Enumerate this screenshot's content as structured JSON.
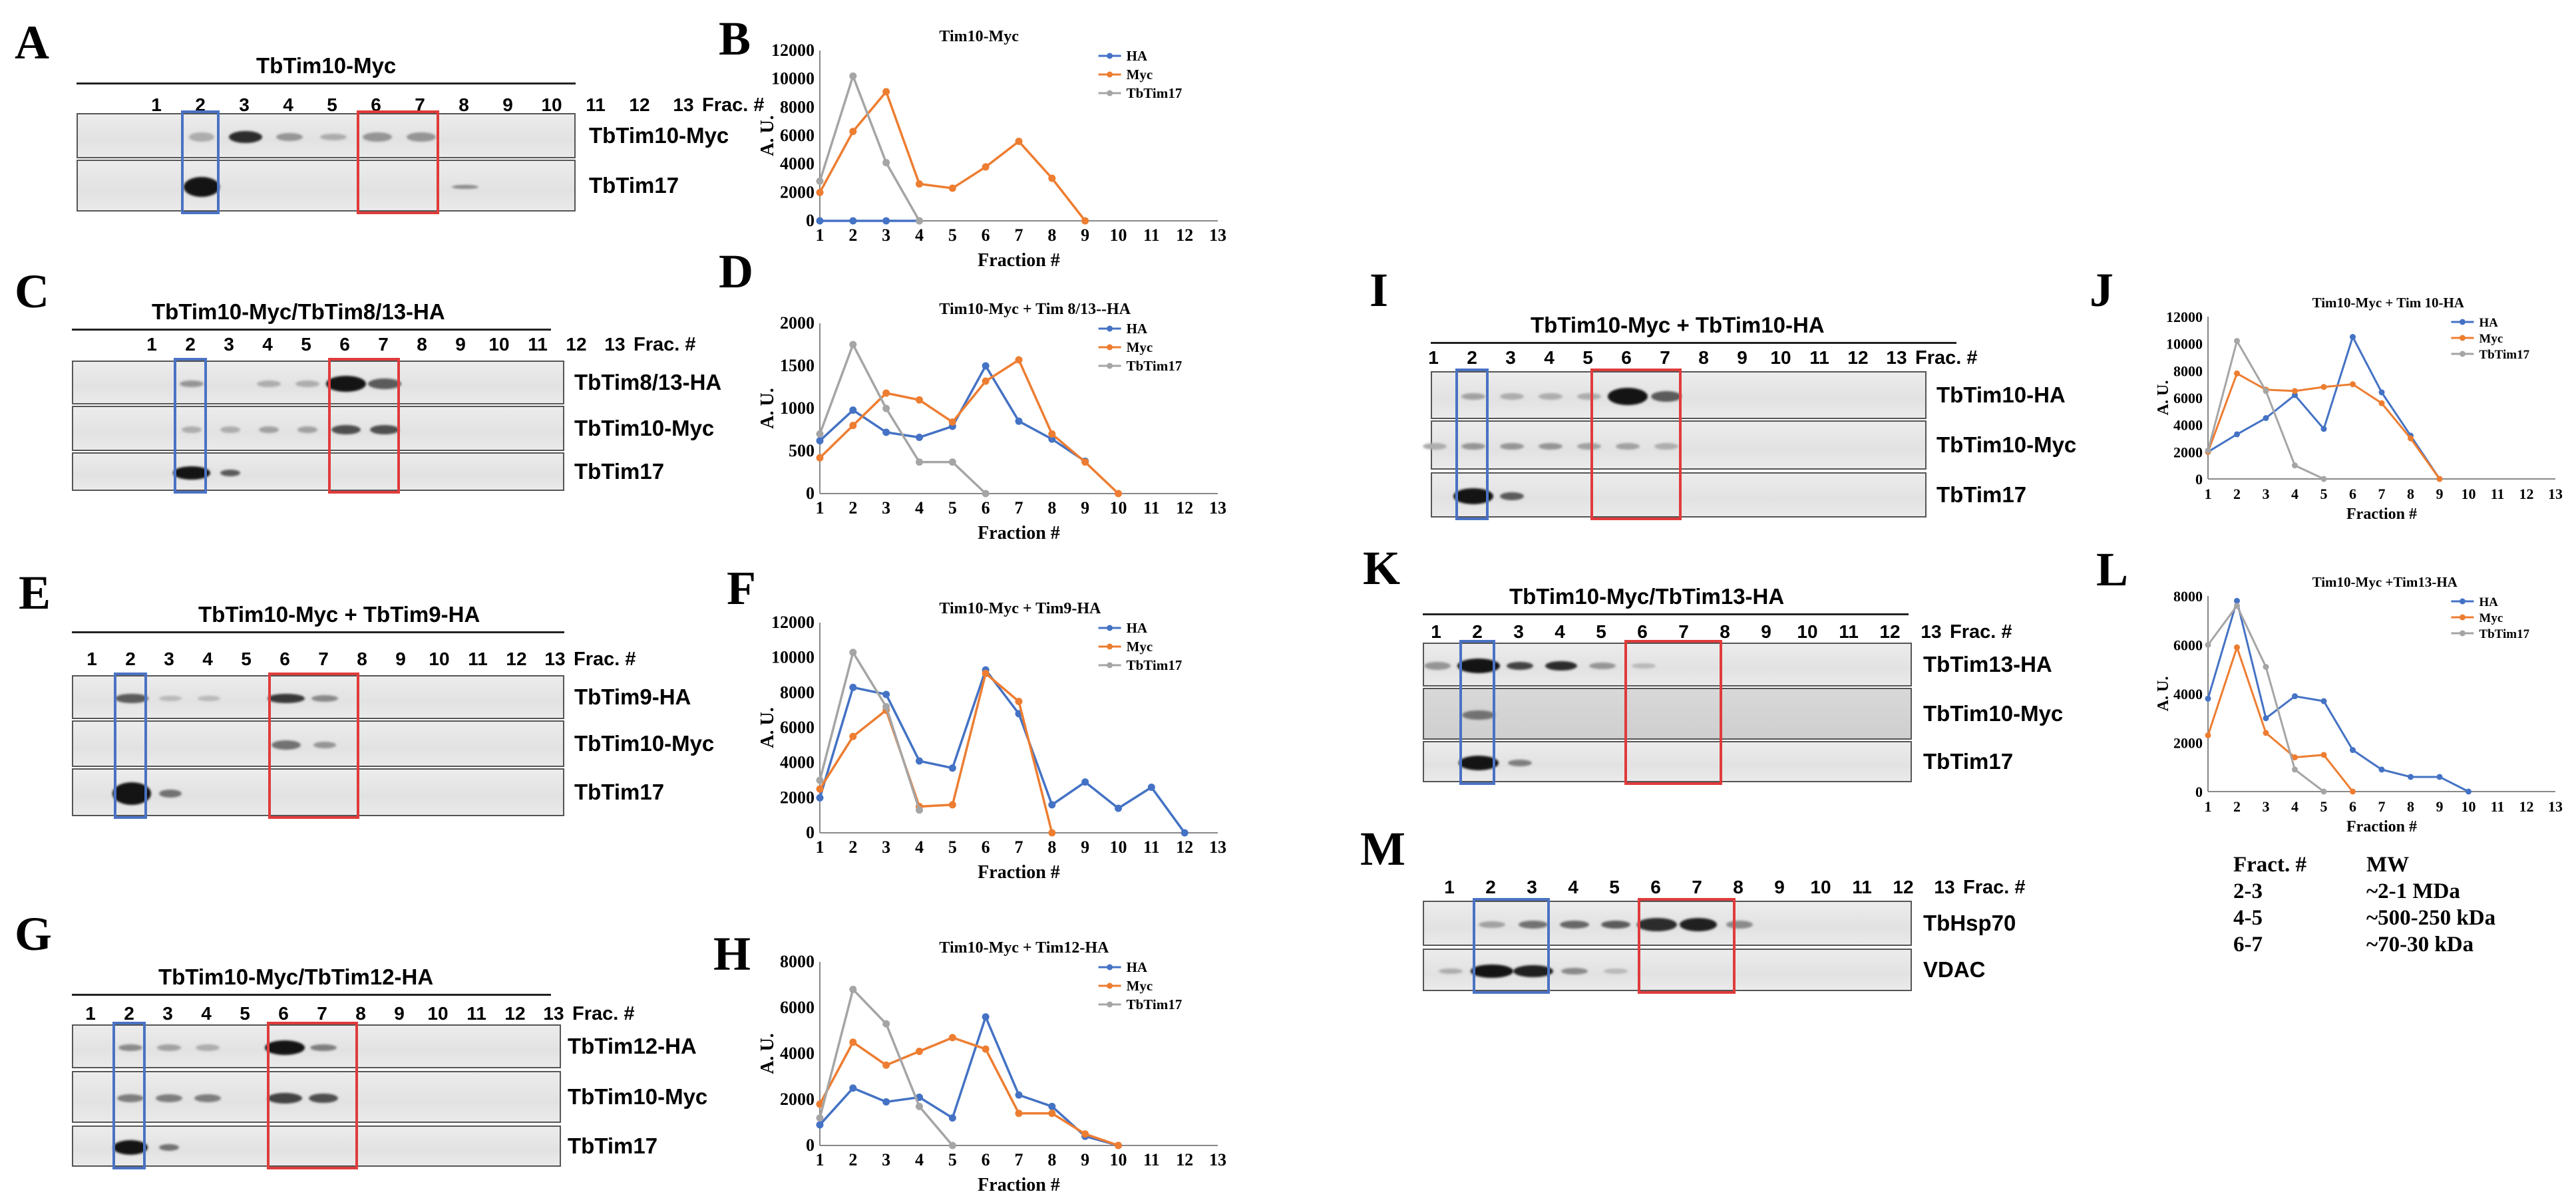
{
  "panel_letters": {
    "a": "A",
    "b": "B",
    "c": "C",
    "d": "D",
    "e": "E",
    "f": "F",
    "g": "G",
    "h": "H",
    "i": "I",
    "j": "J",
    "k": "K",
    "l": "L",
    "m": "M"
  },
  "blots": {
    "A": {
      "title": "TbTim10-Myc",
      "frac_label": "Frac. #",
      "rows": [
        "TbTim10-Myc",
        "TbTim17"
      ]
    },
    "C": {
      "title": "TbTim10-Myc/TbTim8/13-HA",
      "frac_label": "Frac. #",
      "rows": [
        "TbTim8/13-HA",
        "TbTim10-Myc",
        "TbTim17"
      ]
    },
    "E": {
      "title": "TbTim10-Myc + TbTim9-HA",
      "frac_label": "Frac. #",
      "rows": [
        "TbTim9-HA",
        "TbTim10-Myc",
        "TbTim17"
      ]
    },
    "G": {
      "title": "TbTim10-Myc/TbTim12-HA",
      "frac_label": "Frac. #",
      "rows": [
        "TbTim12-HA",
        "TbTim10-Myc",
        "TbTim17"
      ]
    },
    "I": {
      "title": "TbTim10-Myc + TbTim10-HA",
      "frac_label": "Frac. #",
      "rows": [
        "TbTim10-HA",
        "TbTim10-Myc",
        "TbTim17"
      ]
    },
    "K": {
      "title": "TbTim10-Myc/TbTim13-HA",
      "frac_label": "Frac. #",
      "rows": [
        "TbTim13-HA",
        "TbTim10-Myc",
        "TbTim17"
      ]
    },
    "M": {
      "title": "",
      "frac_label": "Frac. #",
      "rows": [
        "TbHsp70",
        "VDAC"
      ]
    }
  },
  "lanes": [
    "1",
    "2",
    "3",
    "4",
    "5",
    "6",
    "7",
    "8",
    "9",
    "10",
    "11",
    "12",
    "13"
  ],
  "mw_table": {
    "header": [
      "Fract. #",
      "MW"
    ],
    "rows": [
      [
        "2-3",
        "~2-1 MDa"
      ],
      [
        "4-5",
        "~500-250 kDa"
      ],
      [
        "6-7",
        "~70-30 kDa"
      ]
    ]
  },
  "colors": {
    "HA": "#4472c4",
    "Myc": "#ed7d31",
    "TbTim17": "#a5a5a5",
    "blue_box": "#4a72c4",
    "red_box": "#e03b3b"
  },
  "chart_data": [
    {
      "panel": "B",
      "type": "line",
      "title": "Tim10-Myc",
      "xlabel": "Fraction #",
      "ylabel": "A. U.",
      "x": [
        1,
        2,
        3,
        4,
        5,
        6,
        7,
        8,
        9,
        10,
        11,
        12,
        13
      ],
      "ylim": [
        0,
        12000
      ],
      "yticks": [
        0,
        2000,
        4000,
        6000,
        8000,
        10000,
        12000
      ],
      "legend": "top-right",
      "series": [
        {
          "name": "HA",
          "values": [
            0,
            0,
            0,
            0,
            null,
            null,
            null,
            null,
            null,
            null,
            null,
            null,
            null
          ]
        },
        {
          "name": "Myc",
          "values": [
            2000,
            6300,
            9100,
            2600,
            2300,
            3800,
            5600,
            3000,
            0,
            null,
            null,
            null,
            null
          ]
        },
        {
          "name": "TbTim17",
          "values": [
            2800,
            10200,
            4100,
            0,
            null,
            null,
            null,
            null,
            null,
            null,
            null,
            null,
            null
          ]
        }
      ]
    },
    {
      "panel": "D",
      "type": "line",
      "title": "Tim10-Myc + Tim 8/13--HA",
      "xlabel": "Fraction #",
      "ylabel": "A. U.",
      "x": [
        1,
        2,
        3,
        4,
        5,
        6,
        7,
        8,
        9,
        10,
        11,
        12,
        13
      ],
      "ylim": [
        0,
        2000
      ],
      "yticks": [
        0,
        500,
        1000,
        1500,
        2000
      ],
      "legend": "top-right",
      "series": [
        {
          "name": "HA",
          "values": [
            620,
            980,
            720,
            660,
            790,
            1500,
            850,
            640,
            380,
            null,
            null,
            null,
            null
          ]
        },
        {
          "name": "Myc",
          "values": [
            420,
            800,
            1180,
            1100,
            840,
            1320,
            1570,
            700,
            370,
            0,
            null,
            null,
            null
          ]
        },
        {
          "name": "TbTim17",
          "values": [
            700,
            1750,
            1000,
            370,
            370,
            0,
            null,
            null,
            null,
            null,
            null,
            null,
            null
          ]
        }
      ]
    },
    {
      "panel": "F",
      "type": "line",
      "title": "Tim10-Myc + Tim9-HA",
      "xlabel": "Fraction #",
      "ylabel": "A. U.",
      "x": [
        1,
        2,
        3,
        4,
        5,
        6,
        7,
        8,
        9,
        10,
        11,
        12,
        13
      ],
      "ylim": [
        0,
        12000
      ],
      "yticks": [
        0,
        2000,
        4000,
        6000,
        8000,
        10000,
        12000
      ],
      "legend": "top-right",
      "series": [
        {
          "name": "HA",
          "values": [
            2000,
            8300,
            7900,
            4100,
            3700,
            9300,
            6800,
            1600,
            2900,
            1400,
            2600,
            0,
            null
          ]
        },
        {
          "name": "Myc",
          "values": [
            2500,
            5500,
            7000,
            1500,
            1600,
            9100,
            7500,
            0,
            null,
            null,
            null,
            null,
            null
          ]
        },
        {
          "name": "TbTim17",
          "values": [
            3000,
            10300,
            7200,
            1300,
            null,
            null,
            null,
            null,
            null,
            null,
            null,
            null,
            null
          ]
        }
      ]
    },
    {
      "panel": "H",
      "type": "line",
      "title": "Tim10-Myc + Tim12-HA",
      "xlabel": "Fraction #",
      "ylabel": "A. U.",
      "x": [
        1,
        2,
        3,
        4,
        5,
        6,
        7,
        8,
        9,
        10,
        11,
        12,
        13
      ],
      "ylim": [
        0,
        8000
      ],
      "yticks": [
        0,
        2000,
        4000,
        6000,
        8000
      ],
      "legend": "top-right",
      "series": [
        {
          "name": "HA",
          "values": [
            900,
            2500,
            1900,
            2100,
            1200,
            5600,
            2200,
            1700,
            400,
            0,
            null,
            null,
            null
          ]
        },
        {
          "name": "Myc",
          "values": [
            1800,
            4500,
            3500,
            4100,
            4700,
            4200,
            1400,
            1400,
            500,
            0,
            null,
            null,
            null
          ]
        },
        {
          "name": "TbTim17",
          "values": [
            1200,
            6800,
            5300,
            1700,
            0,
            null,
            null,
            null,
            null,
            null,
            null,
            null,
            null
          ]
        }
      ]
    },
    {
      "panel": "J",
      "type": "line",
      "title": "Tim10-Myc + Tim 10-HA",
      "xlabel": "Fraction #",
      "ylabel": "A. U.",
      "x": [
        1,
        2,
        3,
        4,
        5,
        6,
        7,
        8,
        9,
        10,
        11,
        12,
        13
      ],
      "ylim": [
        0,
        12000
      ],
      "yticks": [
        0,
        2000,
        4000,
        6000,
        8000,
        10000,
        12000
      ],
      "legend": "top-right",
      "series": [
        {
          "name": "HA",
          "values": [
            2000,
            3300,
            4500,
            6200,
            3700,
            10500,
            6400,
            3200,
            0,
            null,
            null,
            null,
            null
          ]
        },
        {
          "name": "Myc",
          "values": [
            2000,
            7800,
            6600,
            6500,
            6800,
            7000,
            5600,
            3000,
            0,
            null,
            null,
            null,
            null
          ]
        },
        {
          "name": "TbTim17",
          "values": [
            2100,
            10200,
            6500,
            1000,
            0,
            null,
            null,
            null,
            null,
            null,
            null,
            null,
            null
          ]
        }
      ]
    },
    {
      "panel": "L",
      "type": "line",
      "title": "Tim10-Myc +Tim13-HA",
      "xlabel": "Fraction #",
      "ylabel": "A. U.",
      "x": [
        1,
        2,
        3,
        4,
        5,
        6,
        7,
        8,
        9,
        10,
        11,
        12,
        13
      ],
      "ylim": [
        0,
        8000
      ],
      "yticks": [
        0,
        2000,
        4000,
        6000,
        8000
      ],
      "legend": "top-right",
      "series": [
        {
          "name": "HA",
          "values": [
            3800,
            7800,
            3000,
            3900,
            3700,
            1700,
            900,
            600,
            600,
            0,
            null,
            null,
            null
          ]
        },
        {
          "name": "Myc",
          "values": [
            2300,
            5900,
            2400,
            1400,
            1500,
            0,
            null,
            null,
            null,
            null,
            null,
            null,
            null
          ]
        },
        {
          "name": "TbTim17",
          "values": [
            6000,
            7600,
            5100,
            900,
            0,
            null,
            null,
            null,
            null,
            null,
            null,
            null,
            null
          ]
        }
      ]
    }
  ]
}
